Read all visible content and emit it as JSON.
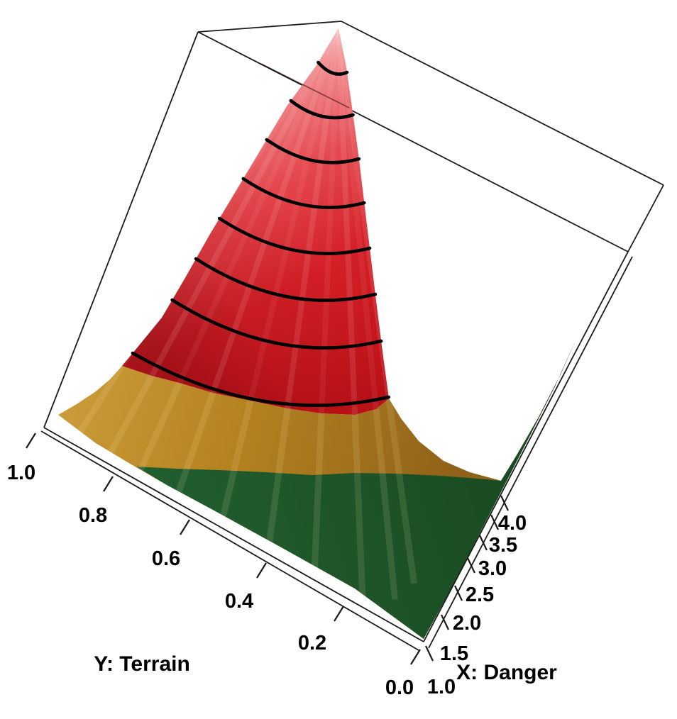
{
  "chart_data": {
    "type": "surface",
    "projection": "3d-perspective-box",
    "title": "",
    "x_axis": {
      "label": "X: Danger",
      "tick_labels": [
        "1.0",
        "1.5",
        "2.0",
        "2.5",
        "3.0",
        "3.5",
        "4.0"
      ],
      "range": [
        1.0,
        4.0
      ]
    },
    "y_axis": {
      "label": "Y: Terrain",
      "tick_labels": [
        "1.0",
        "0.8",
        "0.6",
        "0.4",
        "0.2",
        "0.0"
      ],
      "range": [
        0.0,
        1.0
      ]
    },
    "z_axis": {
      "label": "",
      "tick_labels": []
    },
    "surface": {
      "description": "Surface is a flat low plain at low Danger/low Terrain rising to a steep narrow peak at maximum Danger and maximum Terrain; the peak reaches the top of the bounding box.",
      "zones": [
        {
          "name": "low",
          "color": "#1c542a"
        },
        {
          "name": "medium",
          "color": "#b4821f"
        },
        {
          "name": "high",
          "color": "#d41f26"
        }
      ],
      "contour_lines": {
        "count": 8,
        "color": "#000000"
      }
    },
    "box_color": "#1b1b1b",
    "background": "#ffffff",
    "text_color": "#000000"
  }
}
